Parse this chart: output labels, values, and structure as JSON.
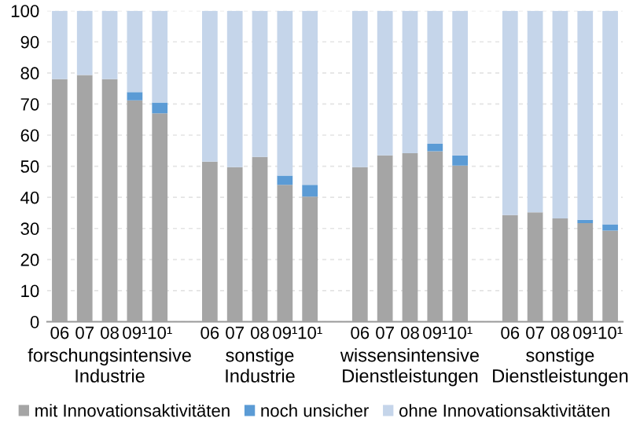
{
  "chart_data": {
    "type": "bar",
    "stacked": true,
    "categories": [
      "06",
      "07",
      "08",
      "09¹",
      "10¹",
      null,
      "06",
      "07",
      "08",
      "09¹",
      "10¹",
      null,
      "06",
      "07",
      "08",
      "09¹",
      "10¹",
      null,
      "06",
      "07",
      "08",
      "09¹",
      "10¹"
    ],
    "series": [
      {
        "name": "mit Innovationsaktivitäten",
        "color": "#a5a5a5",
        "values": [
          78,
          79.3,
          78,
          71.2,
          67,
          null,
          51.5,
          49.7,
          53,
          44,
          40.2,
          null,
          49.7,
          53.5,
          54.2,
          54.8,
          50.2,
          null,
          34.3,
          35.2,
          33.2,
          31.7,
          29.3
        ]
      },
      {
        "name": "noch unsicher",
        "color": "#5b9bd5",
        "values": [
          0,
          0,
          0,
          2.6,
          3.5,
          null,
          0,
          0,
          0,
          3,
          3.8,
          null,
          0,
          0,
          0,
          2.4,
          3.3,
          null,
          0,
          0,
          0,
          1.1,
          2
        ]
      },
      {
        "name": "ohne Innovationsaktivitäten",
        "color": "#c5d5ea",
        "values": [
          22,
          20.7,
          22,
          26.2,
          29.5,
          null,
          48.5,
          50.3,
          47,
          53,
          56,
          null,
          50.3,
          46.5,
          45.8,
          42.8,
          46.5,
          null,
          65.7,
          64.8,
          66.8,
          67.2,
          68.7
        ]
      }
    ],
    "annotations": [
      "forschungsintensive\nIndustrie",
      "sonstige\nIndustrie",
      "wissensintensive\nDienstleistungen",
      "sonstige\nDienstleistungen"
    ],
    "ylim": [
      0,
      100
    ],
    "yticks": [
      0,
      10,
      20,
      30,
      40,
      50,
      60,
      70,
      80,
      90,
      100
    ],
    "grid": "y",
    "legend": "bottom"
  }
}
